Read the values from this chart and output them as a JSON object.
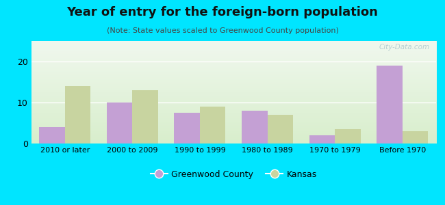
{
  "title": "Year of entry for the foreign-born population",
  "subtitle": "(Note: State values scaled to Greenwood County population)",
  "categories": [
    "2010 or later",
    "2000 to 2009",
    "1990 to 1999",
    "1980 to 1989",
    "1970 to 1979",
    "Before 1970"
  ],
  "greenwood_values": [
    4,
    10,
    7.5,
    8,
    2,
    19
  ],
  "kansas_values": [
    14,
    13,
    9,
    7,
    3.5,
    3
  ],
  "greenwood_color": "#c4a0d4",
  "kansas_color": "#c8d4a0",
  "background_outer": "#00e5ff",
  "bg_top": "#f0f8ee",
  "bg_bottom": "#d8eecc",
  "ylim": [
    0,
    25
  ],
  "yticks": [
    0,
    10,
    20
  ],
  "bar_width": 0.38,
  "legend_greenwood": "Greenwood County",
  "legend_kansas": "Kansas",
  "watermark": "City-Data.com"
}
